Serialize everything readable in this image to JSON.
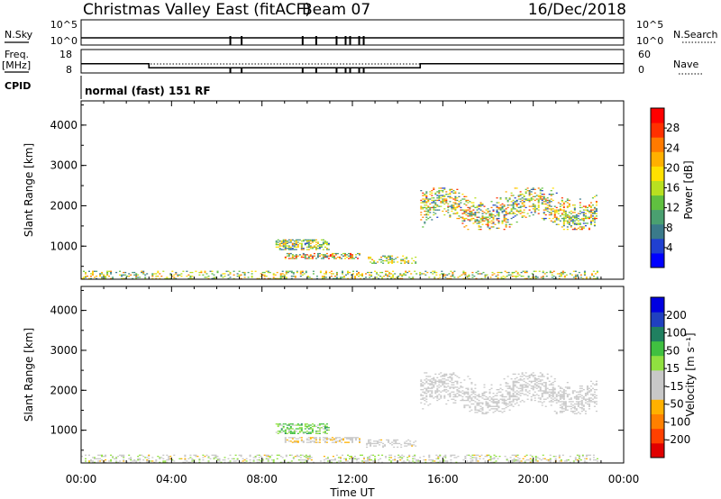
{
  "header": {
    "title": "Christmas Valley East (fitACF)",
    "beam": "Beam 07",
    "date": "16/Dec/2018"
  },
  "status_panels": {
    "nsky_label": "N.Sky",
    "nsky_ticks": [
      "10^5",
      "10^0"
    ],
    "nsearch_label": "N.Search",
    "nsearch_ticks": [
      "10^5",
      "10^0"
    ],
    "freq_label": "Freq.",
    "freq_unit": "[MHz]",
    "freq_ticks": [
      "18",
      "8"
    ],
    "nave_label": "Nave",
    "nave_ticks": [
      "60",
      "0"
    ],
    "cpid_label": "CPID",
    "cpid_value": "normal (fast) 151 RF",
    "freq_step": {
      "start_hour": 3.0,
      "end_hour": 15.0,
      "high_mhz": 11.7,
      "low_mhz": 9.9
    },
    "dropouts_hours": [
      6.6,
      7.1,
      9.8,
      10.4,
      11.3,
      11.7,
      11.9,
      12.3,
      12.5
    ]
  },
  "x_axis": {
    "label": "Time UT",
    "ticks": [
      "00:00",
      "04:00",
      "08:00",
      "12:00",
      "16:00",
      "20:00",
      "00:00"
    ],
    "range_hours": [
      0,
      24
    ]
  },
  "chart_data": [
    {
      "type": "heatmap",
      "quantity": "power",
      "xlabel": "Time UT",
      "ylabel": "Slant Range [km]",
      "xlim_hours": [
        0,
        24
      ],
      "ylim_km": [
        180,
        4600
      ],
      "y_ticks": [
        "1000",
        "2000",
        "3000",
        "4000"
      ],
      "colorbar_label": "Power [dB]",
      "colorbar_ticks": [
        "4",
        "8",
        "12",
        "16",
        "20",
        "24",
        "28"
      ],
      "colorbar_range": [
        0,
        32
      ],
      "colorscale": [
        "#0000ff",
        "#2040d0",
        "#3a7a8a",
        "#4aa070",
        "#60c040",
        "#b8e020",
        "#ffe000",
        "#ffb000",
        "#ff7a00",
        "#ff3000",
        "#ff0000"
      ],
      "regions": [
        {
          "name": "ground scatter band",
          "t_start": 0.0,
          "t_end": 22.8,
          "r_low": 180,
          "r_high": 380,
          "density": 0.28,
          "value_min": 6,
          "value_max": 26
        },
        {
          "name": "morning echo upper",
          "t_start": 8.6,
          "t_end": 11.0,
          "r_low": 900,
          "r_high": 1150,
          "density": 0.55,
          "value_min": 4,
          "value_max": 24
        },
        {
          "name": "morning echo lower",
          "t_start": 9.0,
          "t_end": 12.3,
          "r_low": 680,
          "r_high": 820,
          "density": 0.5,
          "value_min": 6,
          "value_max": 30
        },
        {
          "name": "midday patch",
          "t_start": 12.6,
          "t_end": 14.8,
          "r_low": 560,
          "r_high": 760,
          "density": 0.35,
          "value_min": 6,
          "value_max": 24
        },
        {
          "name": "evening echo",
          "t_start": 15.0,
          "t_end": 22.8,
          "r_low": 1400,
          "r_high": 2450,
          "density": 0.55,
          "value_min": 4,
          "value_max": 28
        }
      ]
    },
    {
      "type": "heatmap",
      "quantity": "velocity",
      "xlabel": "Time UT",
      "ylabel": "Slant Range [km]",
      "xlim_hours": [
        0,
        24
      ],
      "ylim_km": [
        180,
        4600
      ],
      "y_ticks": [
        "1000",
        "2000",
        "3000",
        "4000"
      ],
      "colorbar_label": "Velocity [m s⁻¹]",
      "colorbar_ticks": [
        "200",
        "100",
        "50",
        "15",
        "-15",
        "-50",
        "-100",
        "-200"
      ],
      "colorbar_range": [
        -250,
        250
      ],
      "colorscale": [
        "#e00000",
        "#ff4000",
        "#ff8000",
        "#ffb000",
        "#c8c8c8",
        "#c8c8c8",
        "#90e040",
        "#40c040",
        "#208060",
        "#2040c0",
        "#0000e0"
      ],
      "regions": [
        {
          "name": "ground scatter band",
          "t_start": 0.0,
          "t_end": 22.8,
          "r_low": 180,
          "r_high": 380,
          "density": 0.3,
          "value_min": -80,
          "value_max": 60
        },
        {
          "name": "morning echo upper",
          "t_start": 8.6,
          "t_end": 11.0,
          "r_low": 900,
          "r_high": 1150,
          "density": 0.55,
          "value_min": 10,
          "value_max": 120
        },
        {
          "name": "morning echo lower",
          "t_start": 9.0,
          "t_end": 12.3,
          "r_low": 680,
          "r_high": 820,
          "density": 0.5,
          "value_min": -90,
          "value_max": -20
        },
        {
          "name": "midday patch",
          "t_start": 12.6,
          "t_end": 14.8,
          "r_low": 560,
          "r_high": 760,
          "density": 0.35,
          "value_min": -70,
          "value_max": -20
        },
        {
          "name": "evening echo",
          "t_start": 15.0,
          "t_end": 22.8,
          "r_low": 1400,
          "r_high": 2450,
          "density": 0.55,
          "value_min": -12,
          "value_max": 12
        }
      ]
    }
  ]
}
